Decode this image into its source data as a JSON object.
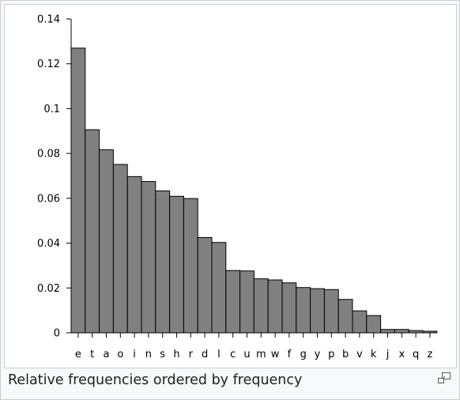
{
  "caption": "Relative frequencies ordered by frequency",
  "magnify_icon": "magnify-clip-icon",
  "colors": {
    "bar_fill": "#808080",
    "bar_stroke": "#000000",
    "frame_bg": "#f8f9fa",
    "frame_border": "#c8ccd1",
    "caption_text": "#202122"
  },
  "chart_data": {
    "type": "bar",
    "title": "",
    "xlabel": "",
    "ylabel": "",
    "ylim": [
      0,
      0.14
    ],
    "yticks": [
      0,
      0.02,
      0.04,
      0.06,
      0.08,
      0.1,
      0.12,
      0.14
    ],
    "ytick_labels": [
      "0",
      "0.02",
      "0.04",
      "0.06",
      "0.08",
      "0.1",
      "0.12",
      "0.14"
    ],
    "grid": false,
    "categories": [
      "e",
      "t",
      "a",
      "o",
      "i",
      "n",
      "s",
      "h",
      "r",
      "d",
      "l",
      "c",
      "u",
      "m",
      "w",
      "f",
      "g",
      "y",
      "p",
      "b",
      "v",
      "k",
      "j",
      "x",
      "q",
      "z"
    ],
    "values": [
      0.127,
      0.0906,
      0.0817,
      0.0751,
      0.0697,
      0.0675,
      0.0633,
      0.0609,
      0.0599,
      0.0425,
      0.0403,
      0.0278,
      0.0276,
      0.0241,
      0.0236,
      0.0223,
      0.0202,
      0.0197,
      0.0193,
      0.0149,
      0.0098,
      0.0077,
      0.0015,
      0.0015,
      0.001,
      0.0007
    ]
  }
}
